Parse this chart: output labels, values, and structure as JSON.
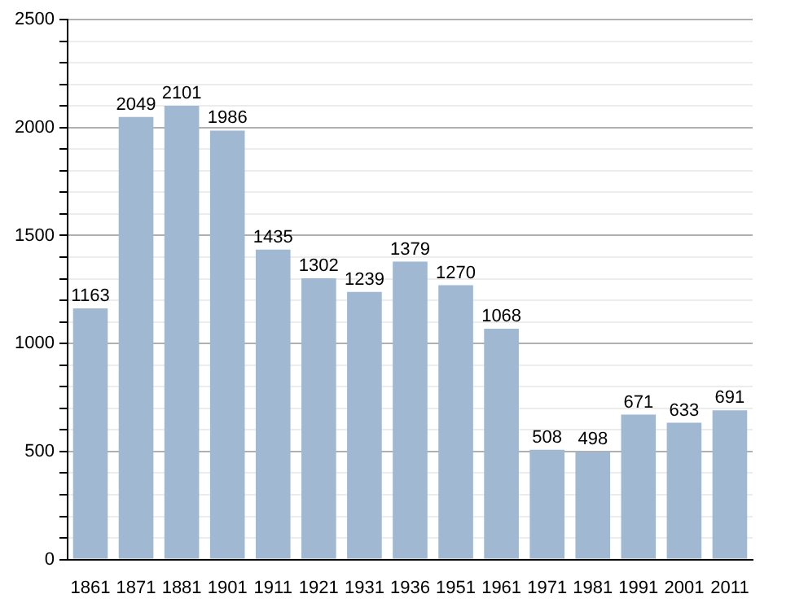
{
  "chart_data": {
    "type": "bar",
    "categories": [
      "1861",
      "1871",
      "1881",
      "1901",
      "1911",
      "1921",
      "1931",
      "1936",
      "1951",
      "1961",
      "1971",
      "1981",
      "1991",
      "2001",
      "2011"
    ],
    "values": [
      1163,
      2049,
      2101,
      1986,
      1435,
      1302,
      1239,
      1379,
      1270,
      1068,
      508,
      498,
      671,
      633,
      691
    ],
    "color": "#a0b8d2",
    "ylim": [
      0,
      2500
    ],
    "yticks": [
      0,
      {
        "value": 100,
        "label": null
      },
      {
        "value": 200,
        "label": null
      },
      {
        "value": 300,
        "label": null
      },
      {
        "value": 400,
        "label": null
      },
      500,
      {
        "value": 600,
        "label": null
      },
      {
        "value": 700,
        "label": null
      },
      {
        "value": 800,
        "label": null
      },
      {
        "value": 900,
        "label": null
      },
      1000,
      {
        "value": 1100,
        "label": null
      },
      {
        "value": 1200,
        "label": null
      },
      {
        "value": 1300,
        "label": null
      },
      {
        "value": 1400,
        "label": null
      },
      1500,
      {
        "value": 1600,
        "label": null
      },
      {
        "value": 1700,
        "label": null
      },
      {
        "value": 1800,
        "label": null
      },
      {
        "value": 1900,
        "label": null
      },
      2000,
      {
        "value": 2100,
        "label": null
      },
      {
        "value": 2200,
        "label": null
      },
      {
        "value": 2300,
        "label": null
      },
      {
        "value": 2400,
        "label": null
      },
      2500
    ],
    "grid": "y",
    "data_labels": true
  }
}
